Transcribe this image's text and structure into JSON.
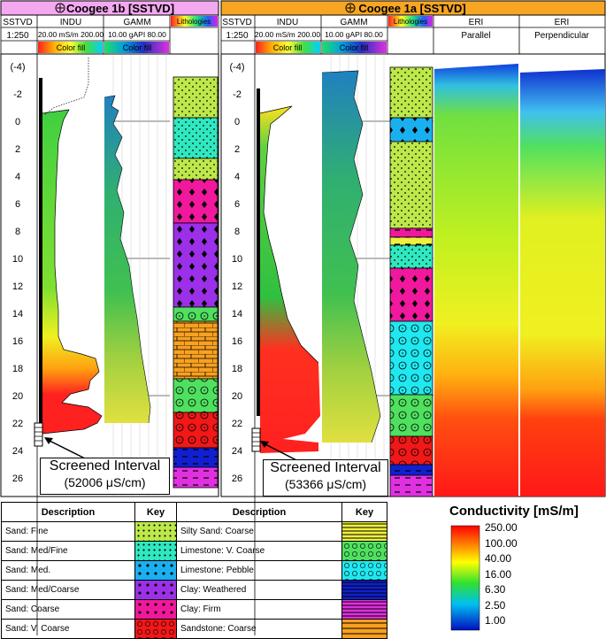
{
  "wells": [
    {
      "title": "Coogee 1b [SSTVD]",
      "depth_col": {
        "name": "SSTVD",
        "scale": "1:250"
      },
      "indu": {
        "name": "INDU",
        "range": "20.00 mS/m 200.00",
        "fill": "Color fill"
      },
      "gamm": {
        "name": "GAMM",
        "range": "10.00 gAPI 80.00",
        "fill": "Color fill"
      },
      "lithology_label": "Lithologies",
      "callout": {
        "line1": "Screened Interval",
        "line2": "(52006 μS/cm)"
      }
    },
    {
      "title": "Coogee 1a [SSTVD]",
      "depth_col": {
        "name": "SSTVD",
        "scale": "1:250"
      },
      "indu": {
        "name": "INDU",
        "range": "20.00 mS/m 200.00",
        "fill": "Color fill"
      },
      "gamm": {
        "name": "GAMM",
        "range": "10.00 gAPI 80.00",
        "fill": "Color fill"
      },
      "lithology_label": "Lithologies",
      "eri": [
        {
          "name": "ERI",
          "sub": "Parallel"
        },
        {
          "name": "ERI",
          "sub": "Perpendicular"
        }
      ],
      "callout": {
        "line1": "Screened Interval",
        "line2": "(53366 μS/cm)"
      }
    }
  ],
  "depth_labels": [
    "(-4)",
    "-2",
    "0",
    "2",
    "4",
    "6",
    "8",
    "10",
    "12",
    "14",
    "16",
    "18",
    "20",
    "22",
    "24",
    "26"
  ],
  "legend": {
    "headers": {
      "description": "Description",
      "key": "Key"
    },
    "left": [
      {
        "desc": "Sand: Fine",
        "pattern": "sand-fine"
      },
      {
        "desc": "Sand: Med/Fine",
        "pattern": "sand-medfine"
      },
      {
        "desc": "Sand: Med.",
        "pattern": "sand-med"
      },
      {
        "desc": "Sand: Med/Coarse",
        "pattern": "sand-medcoarse"
      },
      {
        "desc": "Sand: Coarse",
        "pattern": "sand-coarse"
      },
      {
        "desc": "Sand: V. Coarse",
        "pattern": "sand-vcoarse"
      }
    ],
    "right": [
      {
        "desc": "Silty Sand: Coarse",
        "pattern": "silty-sand"
      },
      {
        "desc": "Limestone: V. Coarse",
        "pattern": "limestone-vcoarse"
      },
      {
        "desc": "Limestone: Pebble",
        "pattern": "limestone-pebble"
      },
      {
        "desc": "Clay: Weathered",
        "pattern": "clay-weathered"
      },
      {
        "desc": "Clay: Firm",
        "pattern": "clay-firm"
      },
      {
        "desc": "Sandstone: Coarse",
        "pattern": "sandstone"
      }
    ]
  },
  "color_scale": {
    "title": "Conductivity [mS/m]",
    "labels": [
      "250.00",
      "100.00",
      "40.00",
      "16.00",
      "6.30",
      "2.50",
      "1.00"
    ]
  },
  "colors": {
    "well1_header": "#f4a8f0",
    "well2_header": "#f6a623",
    "sand_fine": "#bde84a",
    "sand_medfine": "#2fe8c0",
    "sand_med": "#1ab0f0",
    "sand_medcoarse": "#9b30e8",
    "sand_coarse": "#f0189c",
    "sand_vcoarse": "#f01818",
    "silty_sand": "#f0f040",
    "limestone_vcoarse": "#50e060",
    "limestone_pebble": "#20e8f0",
    "clay_weathered": "#1020d0",
    "clay_firm": "#e030e0",
    "sandstone": "#f8a020"
  }
}
